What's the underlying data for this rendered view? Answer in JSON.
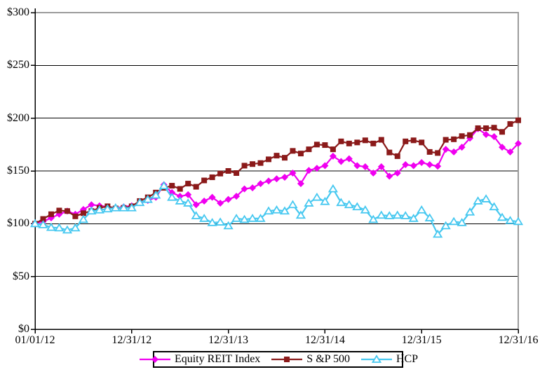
{
  "chart_data": {
    "type": "line",
    "title": "",
    "xlabel": "",
    "ylabel": "",
    "ylim": [
      0,
      300
    ],
    "y_ticks": [
      300,
      250,
      200,
      150,
      100,
      50,
      0
    ],
    "y_tick_labels": [
      "$300",
      "$250",
      "$200",
      "$150",
      "$100",
      "$50",
      "$0"
    ],
    "x_tick_labels": [
      "01/01/12",
      "12/31/12",
      "12/31/13",
      "12/31/14",
      "12/31/15",
      "12/31/16"
    ],
    "grid": "horizontal",
    "legend_position": "bottom-center",
    "frame_color": "#9c9c9c",
    "grid_color": "#000000",
    "series": [
      {
        "name": "Equity REIT Index",
        "color": "#f000f0",
        "marker": "diamond",
        "values": [
          100,
          102,
          105.5,
          109,
          112,
          109,
          113.5,
          118,
          117,
          116,
          115,
          116,
          117,
          120,
          122,
          125,
          137,
          129.5,
          126,
          127.5,
          118,
          121.5,
          125,
          119.5,
          123,
          126,
          133,
          134,
          138,
          140.5,
          142.5,
          144,
          148,
          138,
          150.5,
          152.5,
          155,
          164,
          159,
          161.5,
          155,
          154,
          148,
          154,
          145,
          148,
          156,
          155,
          158,
          156,
          154.5,
          170.5,
          168,
          172.5,
          181,
          190,
          184.5,
          182.5,
          172.5,
          168,
          176
        ]
      },
      {
        "name": "S &P 500",
        "color": "#8b1a1a",
        "marker": "square",
        "values": [
          100,
          104.5,
          109,
          112.5,
          112,
          107,
          110,
          112,
          115,
          116.5,
          114.5,
          115,
          116.5,
          121.5,
          125,
          129.5,
          134,
          136,
          133,
          138,
          135,
          141,
          144,
          147.5,
          150,
          148,
          155,
          156.5,
          157.5,
          161,
          164.5,
          162.5,
          169,
          166.5,
          170.5,
          175,
          174.5,
          170.5,
          178,
          176,
          177,
          179,
          176,
          179.5,
          167.5,
          164,
          178,
          179,
          177,
          168,
          167,
          179.5,
          180,
          183,
          184,
          190.5,
          190.5,
          191,
          187,
          194.5,
          198
        ]
      },
      {
        "name": "HCP",
        "color": "#46c8f0",
        "marker": "triangle-open",
        "values": [
          100,
          99,
          96.5,
          96,
          94,
          96,
          104,
          112,
          113,
          114,
          115,
          115,
          115,
          120,
          123,
          127,
          136,
          125,
          121.5,
          119.5,
          107.5,
          105,
          101,
          101.5,
          98,
          105,
          104,
          105,
          105,
          112,
          113,
          112,
          118,
          108,
          119.5,
          125,
          121,
          133,
          120,
          118,
          116,
          113,
          104,
          108,
          107.5,
          108,
          107.5,
          105,
          113,
          105.5,
          90,
          98,
          102,
          101,
          111,
          121.5,
          123.5,
          116,
          106,
          103,
          102
        ]
      }
    ]
  }
}
